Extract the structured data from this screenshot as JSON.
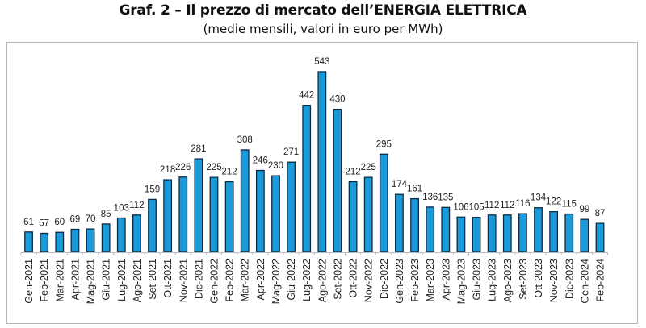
{
  "chart_data": {
    "type": "bar",
    "title": "Graf. 2 – Il prezzo di mercato dell’ENERGIA ELETTRICA",
    "subtitle": "(medie mensili, valori in euro per MWh)",
    "xlabel": "",
    "ylabel": "",
    "ylim": [
      0,
      543
    ],
    "grid": false,
    "legend": "none",
    "bar_color": "#1a9ad9",
    "bar_edge_color": "#0d2a45",
    "categories": [
      "Gen-2021",
      "Feb-2021",
      "Mar-2021",
      "Apr-2021",
      "Mag-2021",
      "Giu-2021",
      "Lug-2021",
      "Ago-2021",
      "Set-2021",
      "Ott-2021",
      "Nov-2021",
      "Dic-2021",
      "Gen-2022",
      "Feb-2022",
      "Mar-2022",
      "Apr-2022",
      "Mag-2022",
      "Giu-2022",
      "Lug-2022",
      "Ago-2022",
      "Set-2022",
      "Ott-2022",
      "Nov-2022",
      "Dic-2022",
      "Gen-2023",
      "Feb-2023",
      "Mar-2023",
      "Apr-2023",
      "Mag-2023",
      "Giu-2023",
      "Lug-2023",
      "Ago-2023",
      "Set-2023",
      "Ott-2023",
      "Nov-2023",
      "Dic-2023",
      "Gen-2024",
      "Feb-2024"
    ],
    "values": [
      61,
      57,
      60,
      69,
      70,
      85,
      103,
      112,
      159,
      218,
      226,
      281,
      225,
      212,
      308,
      246,
      230,
      271,
      442,
      543,
      430,
      212,
      225,
      295,
      174,
      161,
      136,
      135,
      106,
      105,
      112,
      112,
      116,
      134,
      122,
      115,
      99,
      87
    ]
  }
}
